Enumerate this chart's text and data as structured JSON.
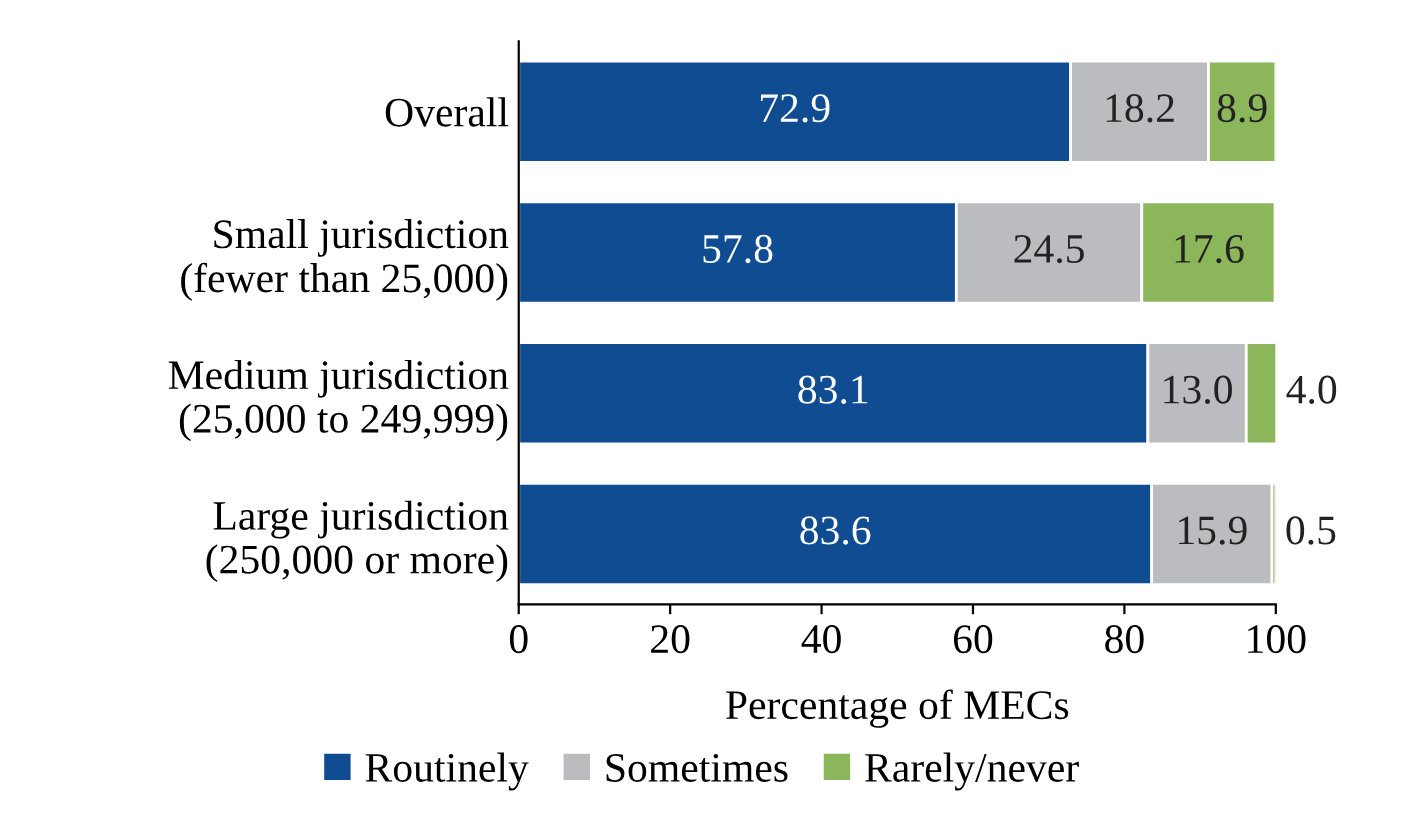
{
  "chart_data": {
    "type": "bar",
    "orientation": "horizontal",
    "stacked": true,
    "xlabel": "Percentage of MECs",
    "categories": [
      "Overall",
      "Small jurisdiction\n(fewer than 25,000)",
      "Medium jurisdiction\n(25,000 to 249,999)",
      "Large jurisdiction\n(250,000 or more)"
    ],
    "series": [
      {
        "name": "Routinely",
        "color": "#0f4c92",
        "values": [
          72.9,
          57.8,
          83.1,
          83.6
        ],
        "value_labels": [
          "72.9",
          "57.8",
          "83.1",
          "83.6"
        ]
      },
      {
        "name": "Sometimes",
        "color": "#bbbcbf",
        "values": [
          18.2,
          24.5,
          13.0,
          15.9
        ],
        "value_labels": [
          "18.2",
          "24.5",
          "13.0",
          "15.9"
        ]
      },
      {
        "name": "Rarely/never",
        "color": "#8cb65a",
        "values": [
          8.9,
          17.6,
          4.0,
          0.5
        ],
        "value_labels": [
          "8.9",
          "17.6",
          "4.0",
          "0.5"
        ]
      }
    ],
    "xlim": [
      0,
      100
    ],
    "xticks": [
      0,
      20,
      40,
      60,
      80,
      100
    ],
    "grid": false,
    "legend": "bottom"
  }
}
